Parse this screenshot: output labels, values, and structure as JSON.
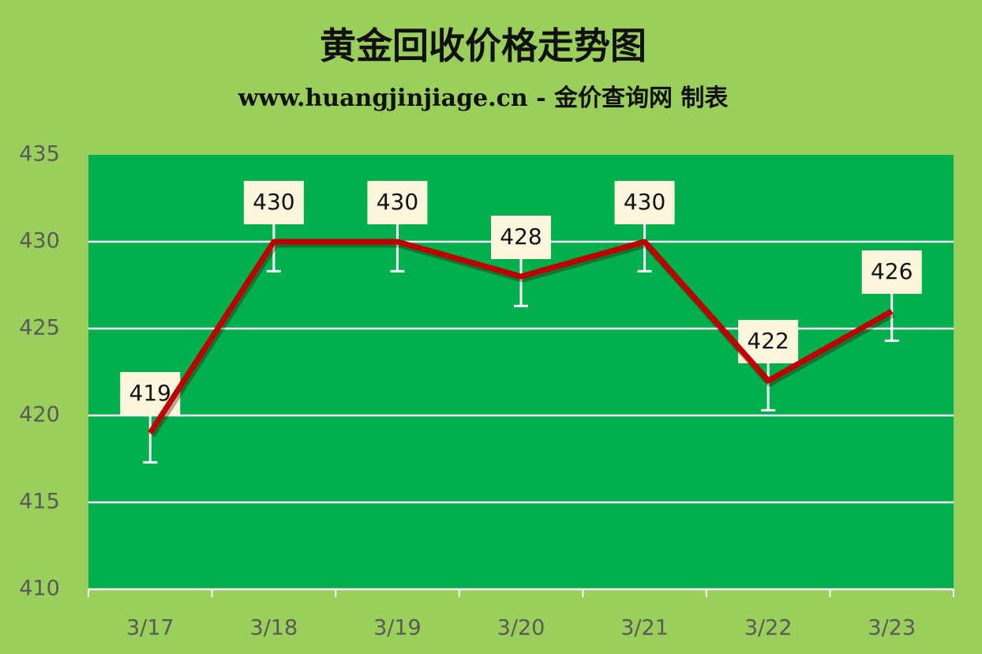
{
  "chart_data": {
    "type": "line",
    "title": "黄金回收价格走势图",
    "subtitle": "www.huangjinjiage.cn - 金价查询网 制表",
    "categories": [
      "3/17",
      "3/18",
      "3/19",
      "3/20",
      "3/21",
      "3/22",
      "3/23"
    ],
    "series": [
      {
        "name": "黄金回收价格",
        "color": "#c00000",
        "values": [
          419,
          430,
          430,
          428,
          430,
          422,
          426
        ],
        "errors": [
          1.7,
          1.7,
          1.7,
          1.7,
          1.7,
          1.7,
          1.7
        ]
      }
    ],
    "ylim": [
      410,
      435
    ],
    "yticks": [
      410,
      415,
      420,
      425,
      430,
      435
    ],
    "grid": true
  }
}
